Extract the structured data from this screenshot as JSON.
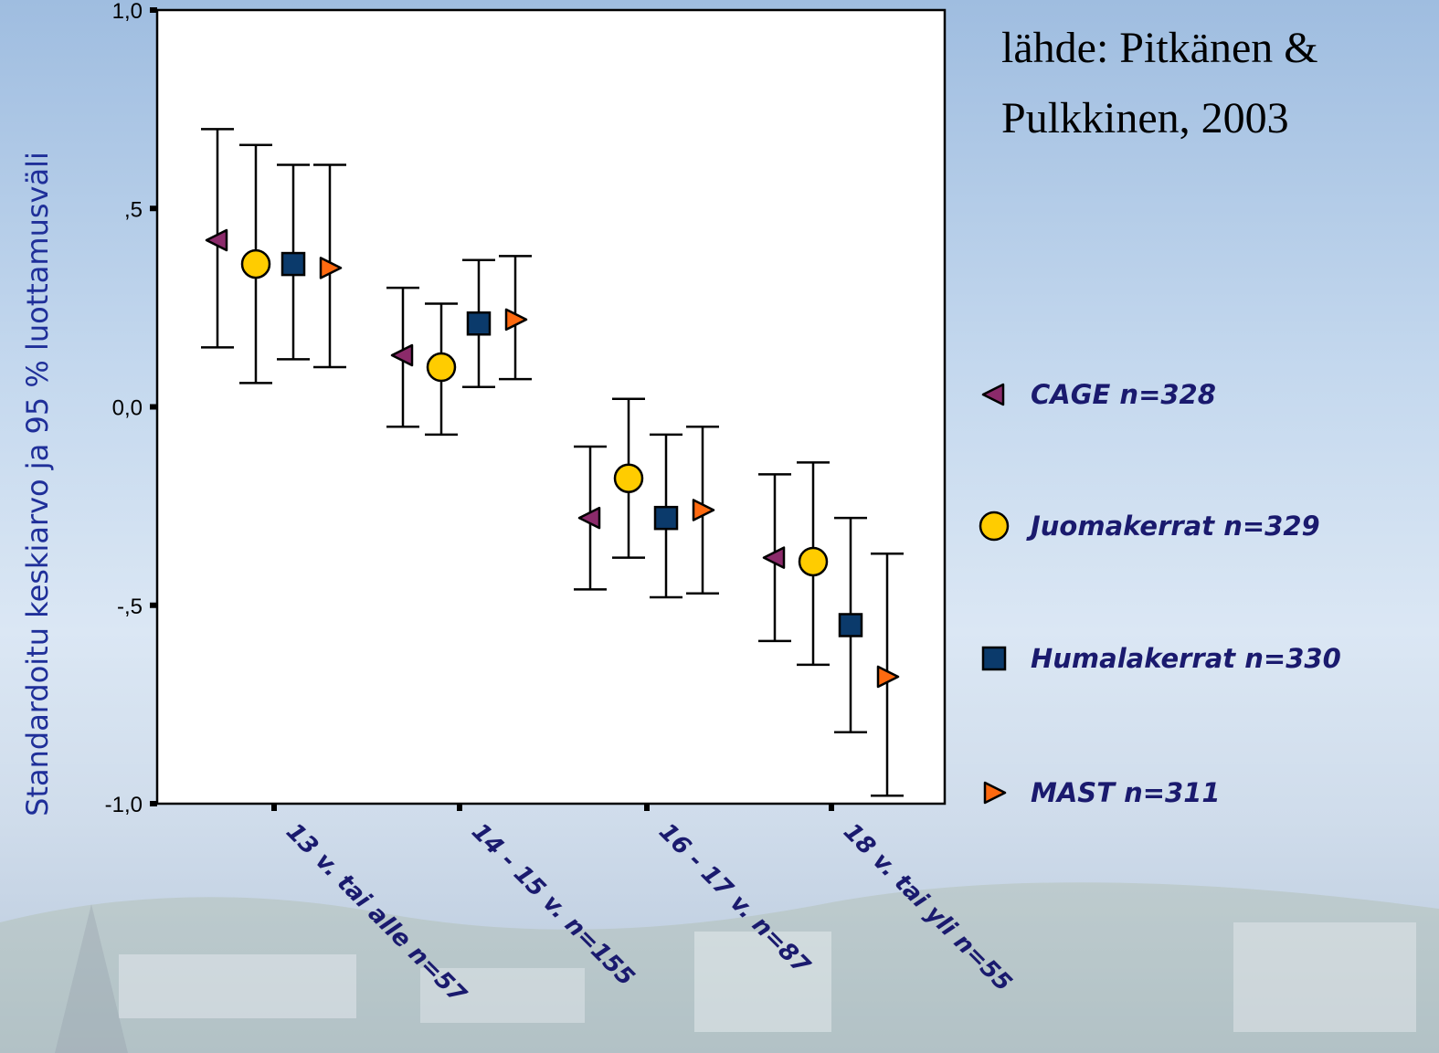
{
  "source_note": [
    "lähde: Pitkänen &",
    "Pulkkinen, 2003"
  ],
  "colors": {
    "CAGE": "#8b2a6a",
    "Juomakerrat": "#ffcc00",
    "Humalakerrat": "#0b3a6b",
    "MAST": "#ff6a10",
    "plot_background": "#ffffff",
    "axis_title": "#1f2f99",
    "category_labels": "#1a1a6e"
  },
  "chart_data": {
    "type": "scatter",
    "subtype": "error-bar",
    "title": "",
    "xlabel": "",
    "ylabel": "Standardoitu keskiarvo ja 95 % luottamusväli",
    "ylim": [
      -1.0,
      1.0
    ],
    "yticks": [
      1.0,
      0.5,
      0.0,
      -0.5,
      -1.0
    ],
    "ytick_labels": [
      "1,0",
      ",5",
      "0,0",
      "-,5",
      "-1,0"
    ],
    "categories": [
      "13 v. tai alle n=57",
      "14 - 15 v. n=155",
      "16 - 17 v. n=87",
      "18 v. tai yli n=55"
    ],
    "grid": false,
    "legend_position": "right",
    "series": [
      {
        "name": "CAGE n=328",
        "marker": "triangle-left",
        "color_key": "CAGE",
        "mean": [
          0.42,
          0.13,
          -0.28,
          -0.38
        ],
        "lower": [
          0.15,
          -0.05,
          -0.46,
          -0.59
        ],
        "upper": [
          0.7,
          0.3,
          -0.1,
          -0.17
        ]
      },
      {
        "name": "Juomakerrat n=329",
        "marker": "circle",
        "color_key": "Juomakerrat",
        "mean": [
          0.36,
          0.1,
          -0.18,
          -0.39
        ],
        "lower": [
          0.06,
          -0.07,
          -0.38,
          -0.65
        ],
        "upper": [
          0.66,
          0.26,
          0.02,
          -0.14
        ]
      },
      {
        "name": "Humalakerrat n=330",
        "marker": "square",
        "color_key": "Humalakerrat",
        "mean": [
          0.36,
          0.21,
          -0.28,
          -0.55
        ],
        "lower": [
          0.12,
          0.05,
          -0.48,
          -0.82
        ],
        "upper": [
          0.61,
          0.37,
          -0.07,
          -0.28
        ]
      },
      {
        "name": "MAST n=311",
        "marker": "triangle-right",
        "color_key": "MAST",
        "mean": [
          0.35,
          0.22,
          -0.26,
          -0.68
        ],
        "lower": [
          0.1,
          0.07,
          -0.47,
          -0.98
        ],
        "upper": [
          0.61,
          0.38,
          -0.05,
          -0.37
        ]
      }
    ]
  }
}
